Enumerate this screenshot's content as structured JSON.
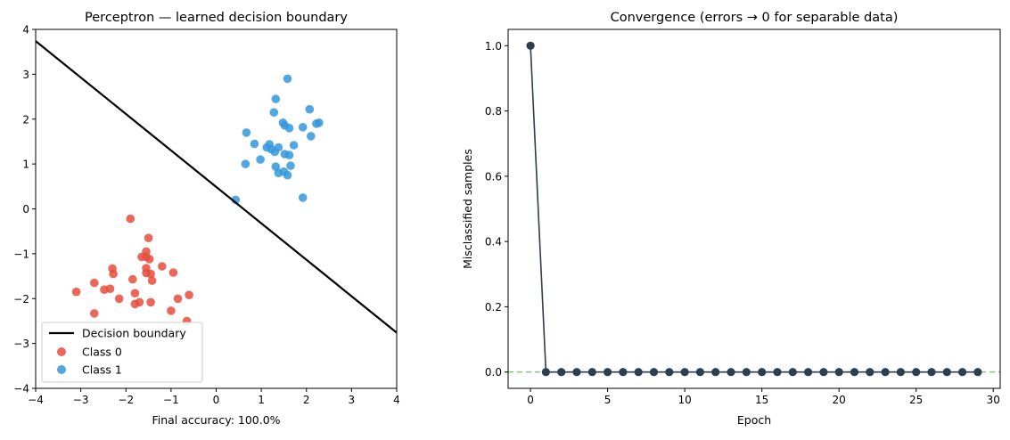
{
  "chart_data": [
    {
      "type": "scatter",
      "title": "Perceptron — learned decision boundary",
      "xlabel": "Final accuracy: 100.0%",
      "ylabel": "",
      "xlim": [
        -4,
        4
      ],
      "ylim": [
        -4,
        4
      ],
      "xticks": [
        -4,
        -3,
        -2,
        -1,
        0,
        1,
        2,
        3,
        4
      ],
      "yticks": [
        -4,
        -3,
        -2,
        -1,
        0,
        1,
        2,
        3,
        4
      ],
      "xtick_labels": [
        "−4",
        "−3",
        "−2",
        "−1",
        "0",
        "1",
        "2",
        "3",
        "4"
      ],
      "ytick_labels": [
        "−4",
        "−3",
        "−2",
        "−1",
        "0",
        "1",
        "2",
        "3",
        "4"
      ],
      "legend_position": "lower-left",
      "boundary": {
        "name": "Decision boundary",
        "color": "#000000",
        "points": [
          [
            -4,
            3.74
          ],
          [
            4,
            -2.76
          ]
        ]
      },
      "series": [
        {
          "name": "Class 0",
          "color": "#e74c3c",
          "points": [
            [
              -1.9,
              -0.22
            ],
            [
              -1.5,
              -0.65
            ],
            [
              -1.55,
              -0.95
            ],
            [
              -1.65,
              -1.07
            ],
            [
              -1.55,
              -1.07
            ],
            [
              -1.48,
              -1.12
            ],
            [
              -2.3,
              -1.33
            ],
            [
              -1.55,
              -1.32
            ],
            [
              -1.2,
              -1.28
            ],
            [
              -2.28,
              -1.45
            ],
            [
              -1.55,
              -1.43
            ],
            [
              -1.45,
              -1.45
            ],
            [
              -0.95,
              -1.42
            ],
            [
              -1.85,
              -1.57
            ],
            [
              -1.42,
              -1.6
            ],
            [
              -2.7,
              -1.65
            ],
            [
              -2.48,
              -1.8
            ],
            [
              -2.35,
              -1.78
            ],
            [
              -3.1,
              -1.85
            ],
            [
              -1.8,
              -1.88
            ],
            [
              -2.15,
              -2.0
            ],
            [
              -0.6,
              -1.92
            ],
            [
              -0.85,
              -2.0
            ],
            [
              -1.7,
              -2.08
            ],
            [
              -1.8,
              -2.12
            ],
            [
              -1.45,
              -2.08
            ],
            [
              -1.0,
              -2.27
            ],
            [
              -2.7,
              -2.33
            ],
            [
              -0.65,
              -2.5
            ]
          ]
        },
        {
          "name": "Class 1",
          "color": "#3498db",
          "points": [
            [
              1.58,
              2.9
            ],
            [
              1.32,
              2.45
            ],
            [
              1.28,
              2.15
            ],
            [
              2.07,
              2.22
            ],
            [
              2.22,
              1.9
            ],
            [
              2.28,
              1.92
            ],
            [
              1.48,
              1.92
            ],
            [
              1.52,
              1.86
            ],
            [
              1.62,
              1.8
            ],
            [
              1.92,
              1.82
            ],
            [
              0.67,
              1.7
            ],
            [
              2.1,
              1.62
            ],
            [
              0.85,
              1.45
            ],
            [
              1.18,
              1.44
            ],
            [
              1.72,
              1.42
            ],
            [
              1.12,
              1.37
            ],
            [
              1.22,
              1.33
            ],
            [
              1.38,
              1.37
            ],
            [
              1.3,
              1.27
            ],
            [
              1.52,
              1.22
            ],
            [
              1.62,
              1.2
            ],
            [
              0.98,
              1.1
            ],
            [
              0.65,
              1.0
            ],
            [
              1.32,
              0.94
            ],
            [
              1.65,
              0.96
            ],
            [
              1.38,
              0.8
            ],
            [
              1.58,
              0.75
            ],
            [
              1.5,
              0.83
            ],
            [
              1.92,
              0.25
            ],
            [
              0.43,
              0.2
            ]
          ]
        }
      ]
    },
    {
      "type": "line",
      "title": "Convergence (errors → 0 for separable data)",
      "xlabel": "Epoch",
      "ylabel": "Misclassified samples",
      "xlim": [
        -1.45,
        30.45
      ],
      "ylim": [
        -0.05,
        1.05
      ],
      "xticks": [
        0,
        5,
        10,
        15,
        20,
        25,
        30
      ],
      "yticks": [
        0.0,
        0.2,
        0.4,
        0.6,
        0.8,
        1.0
      ],
      "xtick_labels": [
        "0",
        "5",
        "10",
        "15",
        "20",
        "25",
        "30"
      ],
      "ytick_labels": [
        "0.0",
        "0.2",
        "0.4",
        "0.6",
        "0.8",
        "1.0"
      ],
      "reference_line": {
        "y": 0,
        "color": "#2ca02c",
        "style": "dashed"
      },
      "series": [
        {
          "name": "Misclassified samples",
          "color": "#2c3e50",
          "x": [
            0,
            1,
            2,
            3,
            4,
            5,
            6,
            7,
            8,
            9,
            10,
            11,
            12,
            13,
            14,
            15,
            16,
            17,
            18,
            19,
            20,
            21,
            22,
            23,
            24,
            25,
            26,
            27,
            28,
            29
          ],
          "values": [
            1,
            0,
            0,
            0,
            0,
            0,
            0,
            0,
            0,
            0,
            0,
            0,
            0,
            0,
            0,
            0,
            0,
            0,
            0,
            0,
            0,
            0,
            0,
            0,
            0,
            0,
            0,
            0,
            0,
            0
          ]
        }
      ]
    }
  ]
}
